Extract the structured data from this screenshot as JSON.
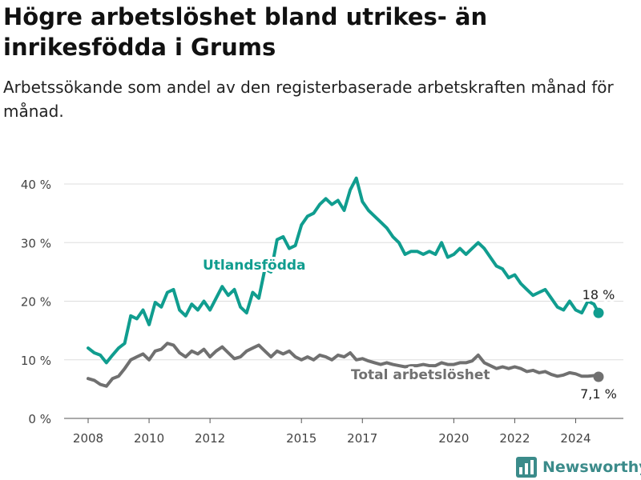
{
  "page": {
    "title": "Högre arbetslöshet bland utrikes- än inrikesfödda i Grums",
    "subtitle": "Arbetssökande som andel av den registerbaserade arbetskraften månad för månad.",
    "brand": "Newsworthy"
  },
  "colors": {
    "foreign": "#109d8f",
    "total": "#707070",
    "grid": "#dddddd",
    "axis": "#444444",
    "brand": "#3b8b8a"
  },
  "chart_data": {
    "type": "line",
    "title": "Högre arbetslöshet bland utrikes- än inrikesfödda i Grums",
    "subtitle": "Arbetssökande som andel av den registerbaserade arbetskraften månad för månad.",
    "ylim": [
      0,
      40
    ],
    "yticks": [
      0,
      10,
      20,
      30,
      40
    ],
    "ytick_labels": [
      "0 %",
      "10 %",
      "20 %",
      "30 %",
      "40 %"
    ],
    "xticks": [
      2008,
      2010,
      2012,
      2015,
      2017,
      2020,
      2022,
      2024
    ],
    "xtick_labels": [
      "2008",
      "2010",
      "2012",
      "2015",
      "2017",
      "2020",
      "2022",
      "2024"
    ],
    "xlim": [
      2006.6,
      2025.7
    ],
    "grid": "horizontal",
    "series": [
      {
        "name": "Utlandsfödda",
        "color": "#109d8f",
        "end_label": "18 %",
        "points": [
          [
            2008.0,
            12.0
          ],
          [
            2008.2,
            11.2
          ],
          [
            2008.4,
            10.8
          ],
          [
            2008.6,
            9.5
          ],
          [
            2008.8,
            10.8
          ],
          [
            2009.0,
            12.0
          ],
          [
            2009.2,
            12.8
          ],
          [
            2009.4,
            17.5
          ],
          [
            2009.6,
            17.0
          ],
          [
            2009.8,
            18.5
          ],
          [
            2010.0,
            16.0
          ],
          [
            2010.2,
            19.8
          ],
          [
            2010.4,
            19.0
          ],
          [
            2010.6,
            21.5
          ],
          [
            2010.8,
            22.0
          ],
          [
            2011.0,
            18.5
          ],
          [
            2011.2,
            17.5
          ],
          [
            2011.4,
            19.5
          ],
          [
            2011.6,
            18.5
          ],
          [
            2011.8,
            20.0
          ],
          [
            2012.0,
            18.5
          ],
          [
            2012.2,
            20.5
          ],
          [
            2012.4,
            22.5
          ],
          [
            2012.6,
            21.0
          ],
          [
            2012.8,
            22.0
          ],
          [
            2013.0,
            19.0
          ],
          [
            2013.2,
            18.0
          ],
          [
            2013.4,
            21.5
          ],
          [
            2013.6,
            20.5
          ],
          [
            2013.8,
            25.5
          ],
          [
            2014.0,
            25.0
          ],
          [
            2014.2,
            30.5
          ],
          [
            2014.4,
            31.0
          ],
          [
            2014.6,
            29.0
          ],
          [
            2014.8,
            29.5
          ],
          [
            2015.0,
            33.0
          ],
          [
            2015.2,
            34.5
          ],
          [
            2015.4,
            35.0
          ],
          [
            2015.6,
            36.5
          ],
          [
            2015.8,
            37.5
          ],
          [
            2016.0,
            36.5
          ],
          [
            2016.2,
            37.2
          ],
          [
            2016.4,
            35.5
          ],
          [
            2016.6,
            39.0
          ],
          [
            2016.8,
            41.0
          ],
          [
            2017.0,
            37.0
          ],
          [
            2017.2,
            35.5
          ],
          [
            2017.4,
            34.5
          ],
          [
            2017.6,
            33.5
          ],
          [
            2017.8,
            32.5
          ],
          [
            2018.0,
            31.0
          ],
          [
            2018.2,
            30.0
          ],
          [
            2018.4,
            28.0
          ],
          [
            2018.6,
            28.5
          ],
          [
            2018.8,
            28.5
          ],
          [
            2019.0,
            28.0
          ],
          [
            2019.2,
            28.5
          ],
          [
            2019.4,
            28.0
          ],
          [
            2019.6,
            30.0
          ],
          [
            2019.8,
            27.5
          ],
          [
            2020.0,
            28.0
          ],
          [
            2020.2,
            29.0
          ],
          [
            2020.4,
            28.0
          ],
          [
            2020.6,
            29.0
          ],
          [
            2020.8,
            30.0
          ],
          [
            2021.0,
            29.0
          ],
          [
            2021.2,
            27.5
          ],
          [
            2021.4,
            26.0
          ],
          [
            2021.6,
            25.5
          ],
          [
            2021.8,
            24.0
          ],
          [
            2022.0,
            24.5
          ],
          [
            2022.2,
            23.0
          ],
          [
            2022.4,
            22.0
          ],
          [
            2022.6,
            21.0
          ],
          [
            2022.8,
            21.5
          ],
          [
            2023.0,
            22.0
          ],
          [
            2023.2,
            20.5
          ],
          [
            2023.4,
            19.0
          ],
          [
            2023.6,
            18.5
          ],
          [
            2023.8,
            20.0
          ],
          [
            2024.0,
            18.5
          ],
          [
            2024.2,
            18.0
          ],
          [
            2024.4,
            20.0
          ],
          [
            2024.6,
            19.5
          ],
          [
            2024.75,
            18.0
          ]
        ]
      },
      {
        "name": "Total arbetslöshet",
        "color": "#707070",
        "end_label": "7,1 %",
        "points": [
          [
            2008.0,
            6.8
          ],
          [
            2008.2,
            6.5
          ],
          [
            2008.4,
            5.8
          ],
          [
            2008.6,
            5.5
          ],
          [
            2008.8,
            6.8
          ],
          [
            2009.0,
            7.2
          ],
          [
            2009.2,
            8.5
          ],
          [
            2009.4,
            10.0
          ],
          [
            2009.6,
            10.5
          ],
          [
            2009.8,
            11.0
          ],
          [
            2010.0,
            10.0
          ],
          [
            2010.2,
            11.5
          ],
          [
            2010.4,
            11.8
          ],
          [
            2010.6,
            12.8
          ],
          [
            2010.8,
            12.5
          ],
          [
            2011.0,
            11.2
          ],
          [
            2011.2,
            10.5
          ],
          [
            2011.4,
            11.5
          ],
          [
            2011.6,
            11.0
          ],
          [
            2011.8,
            11.8
          ],
          [
            2012.0,
            10.5
          ],
          [
            2012.2,
            11.5
          ],
          [
            2012.4,
            12.2
          ],
          [
            2012.6,
            11.2
          ],
          [
            2012.8,
            10.2
          ],
          [
            2013.0,
            10.5
          ],
          [
            2013.2,
            11.5
          ],
          [
            2013.4,
            12.0
          ],
          [
            2013.6,
            12.5
          ],
          [
            2013.8,
            11.5
          ],
          [
            2014.0,
            10.5
          ],
          [
            2014.2,
            11.5
          ],
          [
            2014.4,
            11.0
          ],
          [
            2014.6,
            11.5
          ],
          [
            2014.8,
            10.5
          ],
          [
            2015.0,
            10.0
          ],
          [
            2015.2,
            10.5
          ],
          [
            2015.4,
            10.0
          ],
          [
            2015.6,
            10.8
          ],
          [
            2015.8,
            10.5
          ],
          [
            2016.0,
            10.0
          ],
          [
            2016.2,
            10.8
          ],
          [
            2016.4,
            10.5
          ],
          [
            2016.6,
            11.2
          ],
          [
            2016.8,
            10.0
          ],
          [
            2017.0,
            10.2
          ],
          [
            2017.2,
            9.8
          ],
          [
            2017.4,
            9.5
          ],
          [
            2017.6,
            9.2
          ],
          [
            2017.8,
            9.5
          ],
          [
            2018.0,
            9.2
          ],
          [
            2018.2,
            9.0
          ],
          [
            2018.4,
            8.8
          ],
          [
            2018.6,
            9.0
          ],
          [
            2018.8,
            9.0
          ],
          [
            2019.0,
            9.2
          ],
          [
            2019.2,
            9.0
          ],
          [
            2019.4,
            9.0
          ],
          [
            2019.6,
            9.5
          ],
          [
            2019.8,
            9.2
          ],
          [
            2020.0,
            9.2
          ],
          [
            2020.2,
            9.5
          ],
          [
            2020.4,
            9.5
          ],
          [
            2020.6,
            9.8
          ],
          [
            2020.8,
            10.8
          ],
          [
            2021.0,
            9.5
          ],
          [
            2021.2,
            9.0
          ],
          [
            2021.4,
            8.5
          ],
          [
            2021.6,
            8.8
          ],
          [
            2021.8,
            8.5
          ],
          [
            2022.0,
            8.8
          ],
          [
            2022.2,
            8.5
          ],
          [
            2022.4,
            8.0
          ],
          [
            2022.6,
            8.2
          ],
          [
            2022.8,
            7.8
          ],
          [
            2023.0,
            8.0
          ],
          [
            2023.2,
            7.5
          ],
          [
            2023.4,
            7.2
          ],
          [
            2023.6,
            7.4
          ],
          [
            2023.8,
            7.8
          ],
          [
            2024.0,
            7.6
          ],
          [
            2024.2,
            7.2
          ],
          [
            2024.4,
            7.2
          ],
          [
            2024.6,
            7.3
          ],
          [
            2024.75,
            7.1
          ]
        ]
      }
    ],
    "annotations": [
      "Utlandsfödda",
      "Total arbetslöshet",
      "18 %",
      "7,1 %"
    ]
  }
}
